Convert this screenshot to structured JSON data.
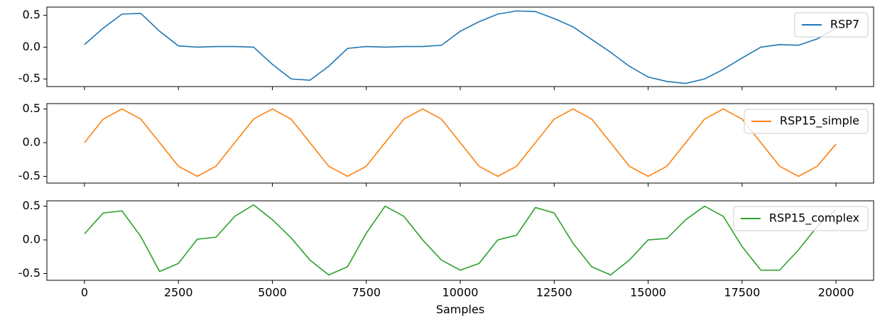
{
  "chart_data": [
    {
      "type": "line",
      "x": [
        0,
        500,
        1000,
        1500,
        2000,
        2500,
        3000,
        3500,
        4000,
        4500,
        5000,
        5500,
        6000,
        6500,
        7000,
        7500,
        8000,
        8500,
        9000,
        9500,
        10000,
        10500,
        11000,
        11500,
        12000,
        12500,
        13000,
        13500,
        14000,
        14500,
        15000,
        15500,
        16000,
        16500,
        17000,
        17500,
        18000,
        18500,
        19000,
        19500,
        20000
      ],
      "series": [
        {
          "name": "RSP7",
          "color": "#1f77b4",
          "values": [
            0.04,
            0.3,
            0.52,
            0.53,
            0.25,
            0.02,
            0.0,
            0.01,
            0.01,
            0.0,
            -0.27,
            -0.5,
            -0.52,
            -0.3,
            -0.02,
            0.01,
            0.0,
            0.01,
            0.01,
            0.03,
            0.25,
            0.4,
            0.52,
            0.57,
            0.56,
            0.45,
            0.32,
            0.12,
            -0.08,
            -0.3,
            -0.47,
            -0.54,
            -0.57,
            -0.5,
            -0.35,
            -0.17,
            0.0,
            0.04,
            0.03,
            0.13,
            0.3
          ]
        }
      ],
      "xlim": [
        -1000,
        21000
      ],
      "ylim": [
        -0.62,
        0.63
      ],
      "yticks": [
        {
          "value": -0.5,
          "label": "-0.5"
        },
        {
          "value": 0,
          "label": "0.0"
        },
        {
          "value": 0.5,
          "label": "0.5"
        }
      ],
      "legend": "upper right"
    },
    {
      "type": "line",
      "x": [
        0,
        500,
        1000,
        1500,
        2000,
        2500,
        3000,
        3500,
        4000,
        4500,
        5000,
        5500,
        6000,
        6500,
        7000,
        7500,
        8000,
        8500,
        9000,
        9500,
        10000,
        10500,
        11000,
        11500,
        12000,
        12500,
        13000,
        13500,
        14000,
        14500,
        15000,
        15500,
        16000,
        16500,
        17000,
        17500,
        18000,
        18500,
        19000,
        19500,
        20000
      ],
      "series": [
        {
          "name": "RSP15_simple",
          "color": "#ff7f0e",
          "values": [
            0.0,
            0.35,
            0.5,
            0.35,
            0.0,
            -0.35,
            -0.5,
            -0.35,
            0.0,
            0.35,
            0.5,
            0.35,
            0.0,
            -0.35,
            -0.5,
            -0.35,
            0.0,
            0.35,
            0.5,
            0.35,
            0.0,
            -0.35,
            -0.5,
            -0.35,
            0.0,
            0.35,
            0.5,
            0.35,
            0.0,
            -0.35,
            -0.5,
            -0.35,
            0.0,
            0.35,
            0.5,
            0.35,
            0.0,
            -0.35,
            -0.5,
            -0.35,
            -0.02
          ]
        }
      ],
      "xlim": [
        -1000,
        21000
      ],
      "ylim": [
        -0.6,
        0.58
      ],
      "yticks": [
        {
          "value": -0.5,
          "label": "-0.5"
        },
        {
          "value": 0,
          "label": "0.0"
        },
        {
          "value": 0.5,
          "label": "0.5"
        }
      ],
      "legend": "upper right"
    },
    {
      "type": "line",
      "x": [
        0,
        500,
        1000,
        1500,
        2000,
        2500,
        3000,
        3500,
        4000,
        4500,
        5000,
        5500,
        6000,
        6500,
        7000,
        7500,
        8000,
        8500,
        9000,
        9500,
        10000,
        10500,
        11000,
        11500,
        12000,
        12500,
        13000,
        13500,
        14000,
        14500,
        15000,
        15500,
        16000,
        16500,
        17000,
        17500,
        18000,
        18500,
        19000,
        19500,
        20000
      ],
      "series": [
        {
          "name": "RSP15_complex",
          "color": "#2ca02c",
          "values": [
            0.09,
            0.4,
            0.43,
            0.05,
            -0.47,
            -0.35,
            0.01,
            0.04,
            0.35,
            0.52,
            0.3,
            0.03,
            -0.3,
            -0.52,
            -0.4,
            0.1,
            0.5,
            0.35,
            0.0,
            -0.3,
            -0.45,
            -0.35,
            0.0,
            0.07,
            0.48,
            0.4,
            -0.05,
            -0.4,
            -0.52,
            -0.3,
            0.0,
            0.02,
            0.3,
            0.5,
            0.35,
            -0.1,
            -0.45,
            -0.45,
            -0.15,
            0.2,
            0.45
          ]
        }
      ],
      "xlim": [
        -1000,
        21000
      ],
      "ylim": [
        -0.6,
        0.58
      ],
      "yticks": [
        {
          "value": -0.5,
          "label": "-0.5"
        },
        {
          "value": 0,
          "label": "0.0"
        },
        {
          "value": 0.5,
          "label": "0.5"
        }
      ],
      "xticks": [
        0,
        2500,
        5000,
        7500,
        10000,
        12500,
        15000,
        17500,
        20000
      ],
      "xlabel": "Samples",
      "legend": "upper right"
    }
  ]
}
